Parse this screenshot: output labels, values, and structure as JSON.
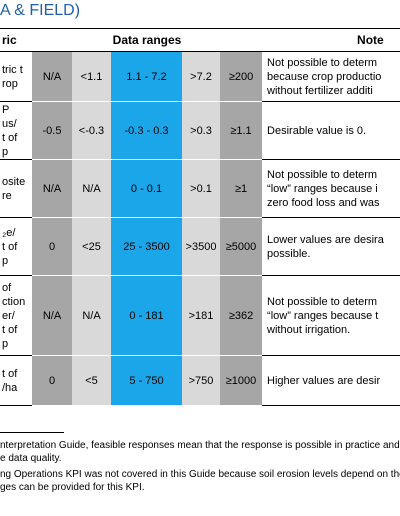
{
  "heading": "A & FIELD)",
  "table": {
    "headers": {
      "metric": "ric",
      "ranges": "Data ranges",
      "notes": "Note"
    },
    "rows": [
      {
        "metric": [
          "tric t",
          "rop"
        ],
        "values": [
          "N/A",
          "<1.1",
          "1.1 - 7.2",
          ">7.2",
          "≥200"
        ],
        "notes": [
          "Not possible to determ",
          "because crop productio",
          "without fertilizer additi"
        ]
      },
      {
        "metric": [
          "P",
          "us/",
          "t of",
          "p"
        ],
        "values": [
          "-0.5",
          "<-0.3",
          "-0.3 - 0.3",
          ">0.3",
          "≥1.1"
        ],
        "notes": [
          "Desirable value is 0."
        ]
      },
      {
        "metric": [
          "osite",
          "re"
        ],
        "values": [
          "N/A",
          "N/A",
          "0 - 0.1",
          ">0.1",
          "≥1"
        ],
        "notes": [
          "Not possible to determ",
          "“low” ranges because i",
          "zero food loss and was"
        ]
      },
      {
        "metric": [
          "₂e/",
          "t of",
          "p"
        ],
        "values": [
          "0",
          "<25",
          "25 - 3500",
          ">3500",
          "≥5000"
        ],
        "notes": [
          "Lower values are desira",
          "possible."
        ]
      },
      {
        "metric": [
          "of",
          "ction",
          "er/",
          "t of",
          "p"
        ],
        "values": [
          "N/A",
          "N/A",
          "0 - 181",
          ">181",
          "≥362"
        ],
        "notes": [
          "Not possible to determ",
          "“low” ranges because t",
          "without irrigation."
        ]
      },
      {
        "metric": [
          "t of",
          "/ha"
        ],
        "values": [
          "0",
          "<5",
          "5 - 750",
          ">750",
          "≥1000"
        ],
        "notes": [
          "Higher values are desir"
        ]
      }
    ]
  },
  "footnotes": [
    "nterpretation Guide, feasible responses mean that the response is possible in practice and",
    "e data quality.",
    "ng Operations KPI was not covered in this Guide because soil erosion levels depend on the",
    "ges can be provided for this KPI."
  ]
}
